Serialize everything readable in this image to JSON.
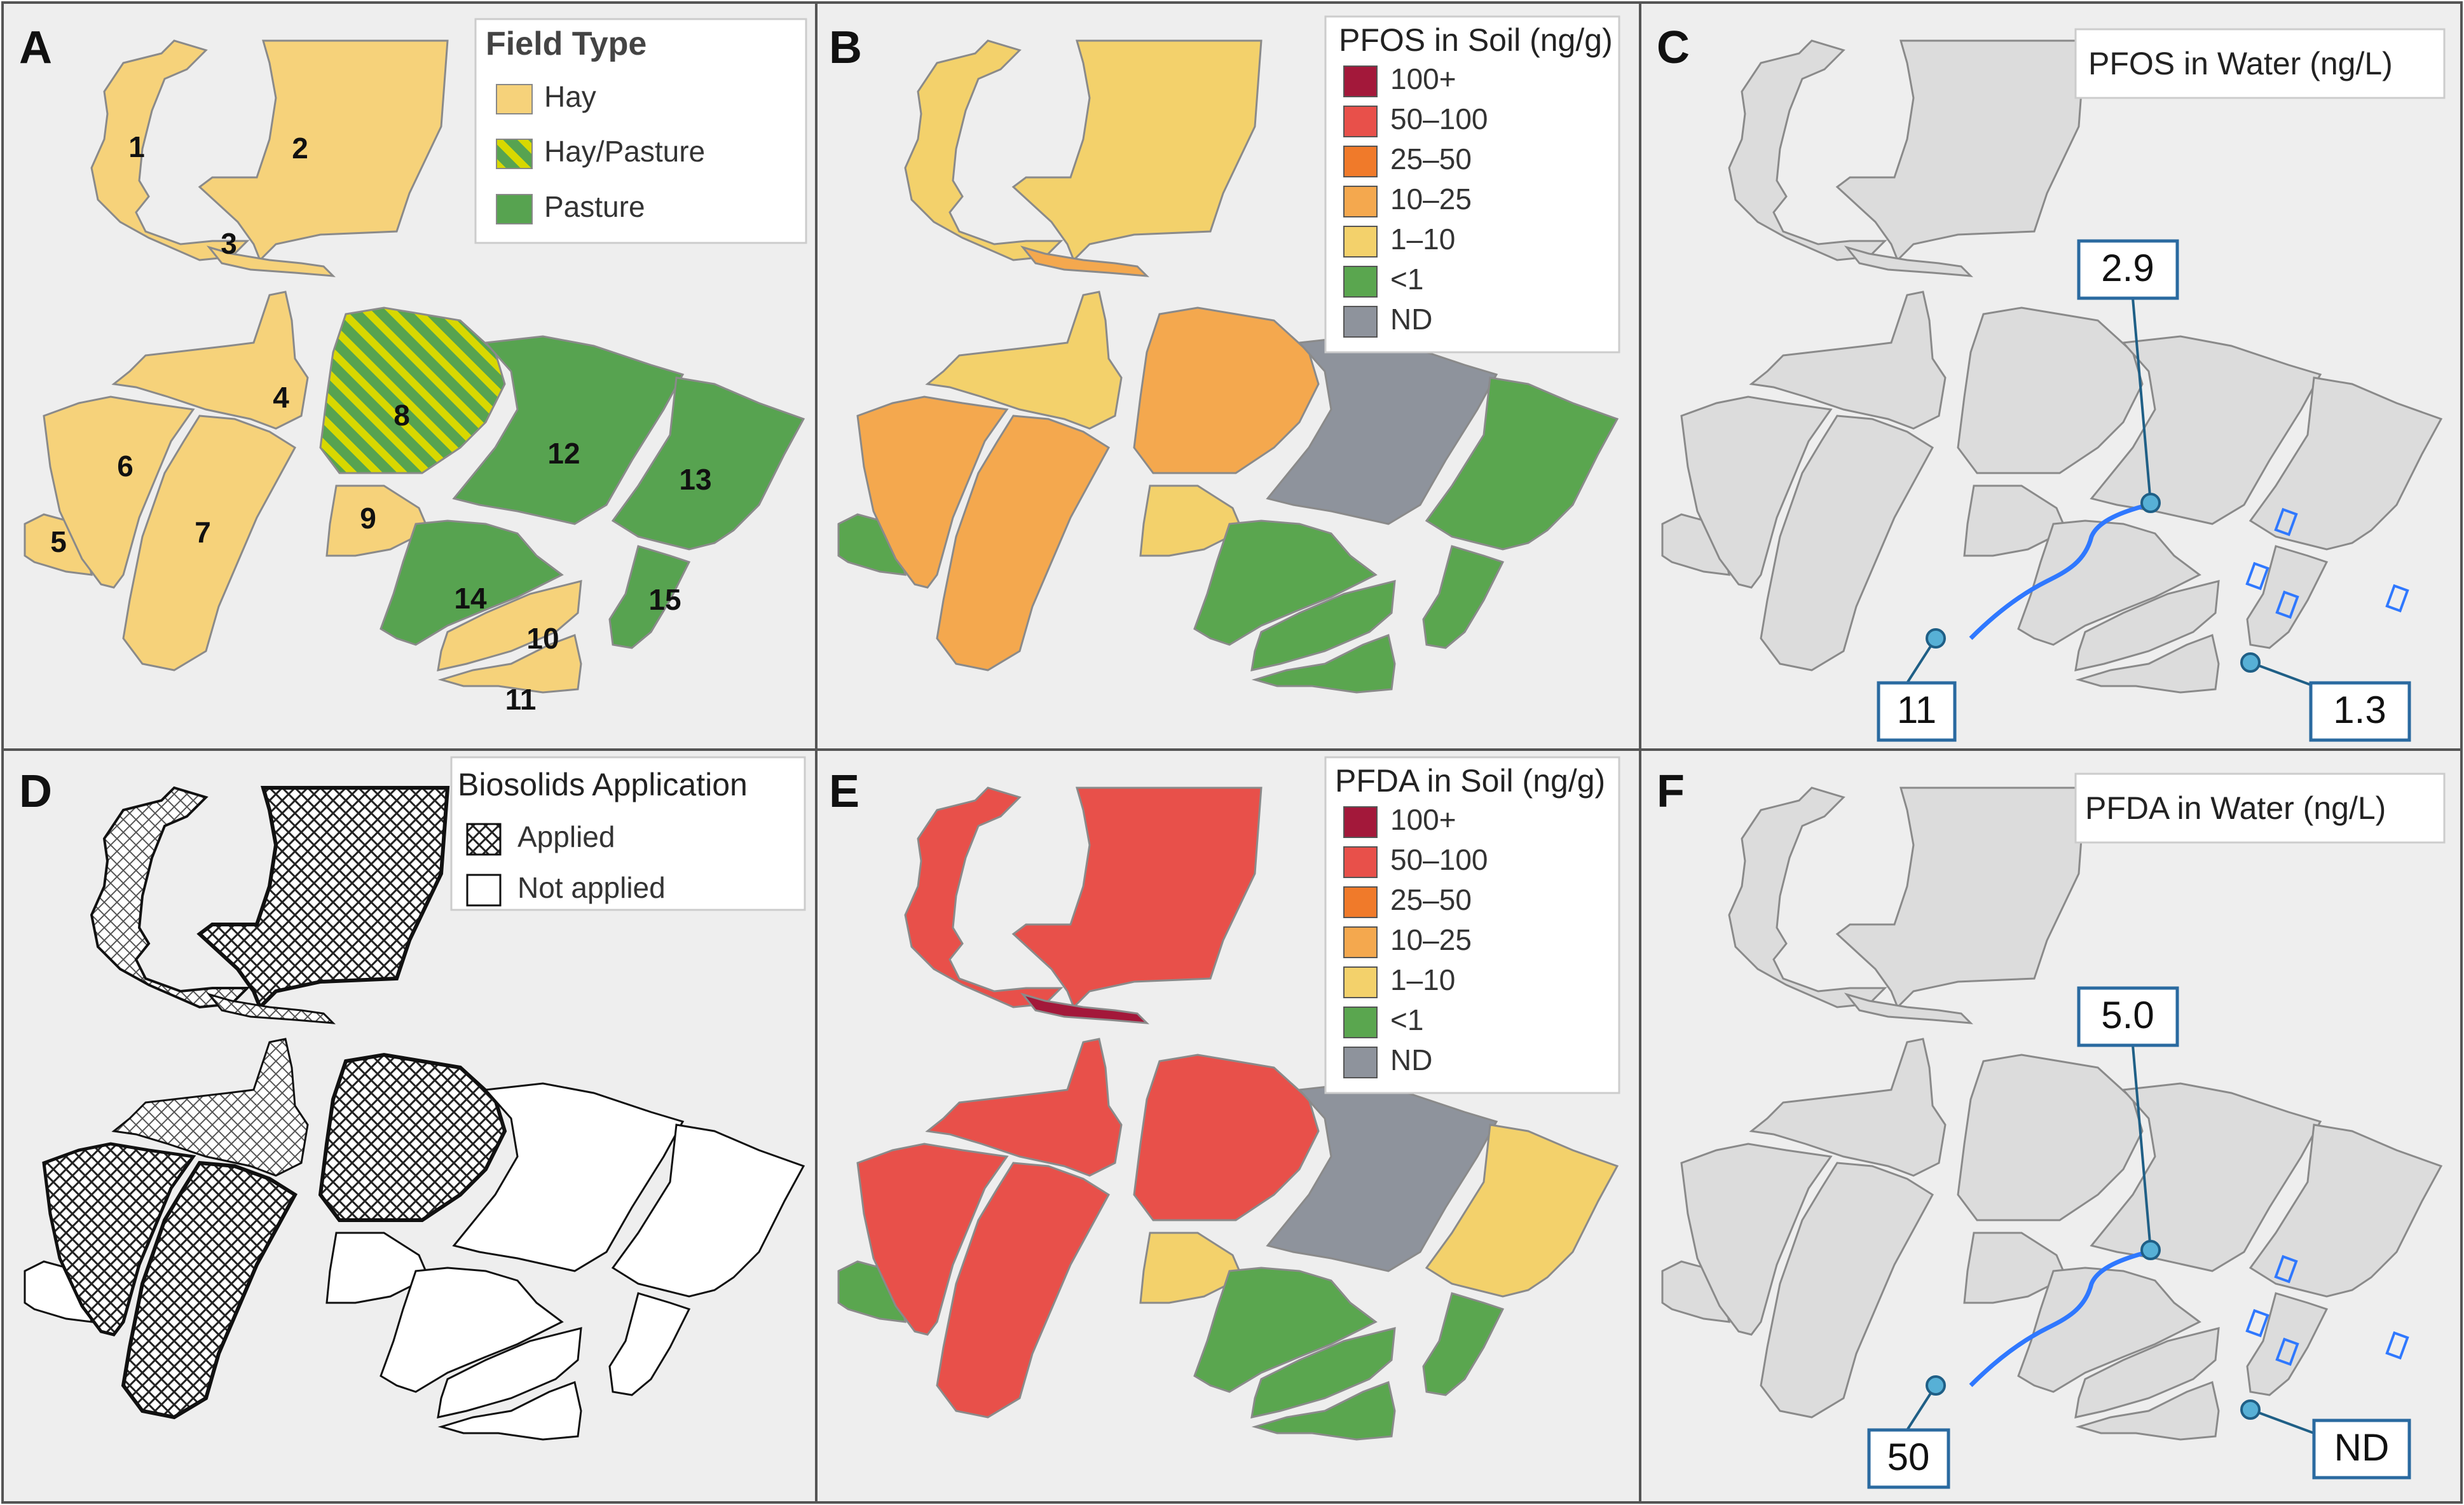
{
  "colors": {
    "hay": "#f6d27a",
    "pasture": "#57a350",
    "pasture_stripe": "#d8d800",
    "c100plus": "#a3183a",
    "c50_100": "#e8504a",
    "c25_50": "#f07a2a",
    "c10_25": "#f4a84e",
    "c1_10": "#f3d16b",
    "clt1": "#5aa64f",
    "cnd": "#8e939c",
    "light_field": "#dcdcdc",
    "water_line": "#2f78ff",
    "callout": "#2a6aa0"
  },
  "panels": [
    {
      "letter": "A",
      "legend_title": "Field Type",
      "legend_items": [
        "Hay",
        "Hay/Pasture",
        "Pasture"
      ]
    },
    {
      "letter": "B",
      "legend_title": "PFOS in Soil (ng/g)",
      "legend_items": [
        "100+",
        "50–100",
        "25–50",
        "10–25",
        "1–10",
        "<1",
        "ND"
      ]
    },
    {
      "letter": "C",
      "legend_title": "PFOS in Water (ng/L)",
      "callouts": [
        "2.9",
        "11",
        "1.3"
      ]
    },
    {
      "letter": "D",
      "legend_title": "Biosolids Application",
      "legend_items": [
        "Applied",
        "Not applied"
      ]
    },
    {
      "letter": "E",
      "legend_title": "PFDA in Soil (ng/g)",
      "legend_items": [
        "100+",
        "50–100",
        "25–50",
        "10–25",
        "1–10",
        "<1",
        "ND"
      ]
    },
    {
      "letter": "F",
      "legend_title": "PFDA in Water (ng/L)",
      "callouts": [
        "5.0",
        "50",
        "ND"
      ]
    }
  ],
  "field_numbers": [
    "1",
    "2",
    "3",
    "4",
    "5",
    "6",
    "7",
    "8",
    "9",
    "10",
    "11",
    "12",
    "13",
    "14",
    "15"
  ]
}
